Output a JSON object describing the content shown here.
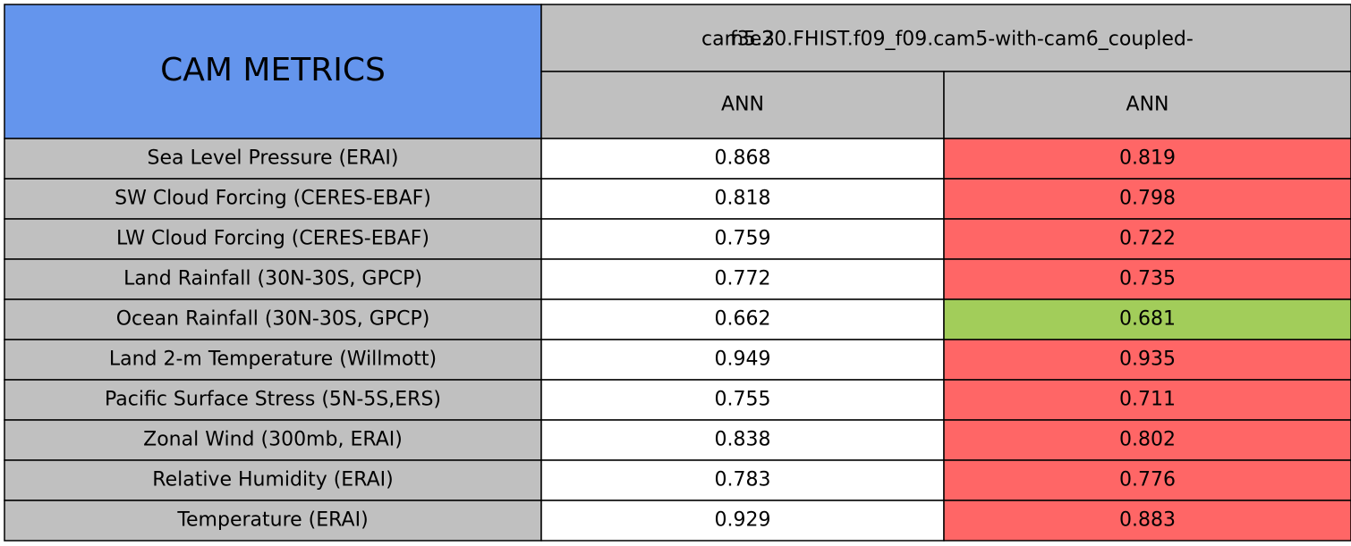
{
  "header": {
    "title": "CAM METRICS",
    "cases": [
      "cam5.3",
      "f3e20.FHIST.f09_f09.cam5-with-cam6_coupled-"
    ],
    "seasons": [
      "ANN",
      "ANN"
    ]
  },
  "table": {
    "rows": [
      {
        "label": "Sea Level Pressure (ERAI)",
        "values": [
          0.868,
          0.819
        ],
        "colors": [
          "#ffffff",
          "#ff6666"
        ]
      },
      {
        "label": "SW Cloud Forcing (CERES-EBAF)",
        "values": [
          0.818,
          0.798
        ],
        "colors": [
          "#ffffff",
          "#ff6666"
        ]
      },
      {
        "label": "LW Cloud Forcing (CERES-EBAF)",
        "values": [
          0.759,
          0.722
        ],
        "colors": [
          "#ffffff",
          "#ff6666"
        ]
      },
      {
        "label": "Land Rainfall (30N-30S, GPCP)",
        "values": [
          0.772,
          0.735
        ],
        "colors": [
          "#ffffff",
          "#ff6666"
        ]
      },
      {
        "label": "Ocean Rainfall (30N-30S, GPCP)",
        "values": [
          0.662,
          0.681
        ],
        "colors": [
          "#ffffff",
          "#a2cd5a"
        ]
      },
      {
        "label": "Land 2-m Temperature (Willmott)",
        "values": [
          0.949,
          0.935
        ],
        "colors": [
          "#ffffff",
          "#ff6666"
        ]
      },
      {
        "label": "Pacific Surface Stress (5N-5S,ERS)",
        "values": [
          0.755,
          0.711
        ],
        "colors": [
          "#ffffff",
          "#ff6666"
        ]
      },
      {
        "label": "Zonal Wind (300mb, ERAI)",
        "values": [
          0.838,
          0.802
        ],
        "colors": [
          "#ffffff",
          "#ff6666"
        ]
      },
      {
        "label": "Relative Humidity (ERAI)",
        "values": [
          0.783,
          0.776
        ],
        "colors": [
          "#ffffff",
          "#ff6666"
        ]
      },
      {
        "label": "Temperature (ERAI)",
        "values": [
          0.929,
          0.883
        ],
        "colors": [
          "#ffffff",
          "#ff6666"
        ]
      }
    ]
  }
}
